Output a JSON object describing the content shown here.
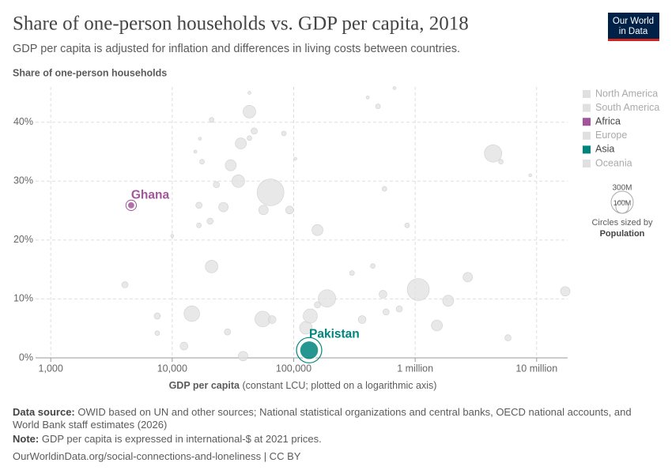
{
  "chart_data": {
    "type": "scatter",
    "title": "Share of one-person households vs. GDP per capita, 2018",
    "subtitle": "GDP per capita is adjusted for inflation and differences in living costs between countries.",
    "y_label": "Share of one-person households",
    "x_label": "GDP per capita",
    "x_label_note": "(constant LCU; plotted on a logarithmic axis)",
    "log_x": true,
    "grid": true,
    "legend": "right",
    "xlim": [
      750,
      18000000
    ],
    "xticks": [
      {
        "value": 1000,
        "label": "1,000"
      },
      {
        "value": 10000,
        "label": "10,000"
      },
      {
        "value": 100000,
        "label": "100,000"
      },
      {
        "value": 1000000,
        "label": "1 million"
      },
      {
        "value": 10000000,
        "label": "10 million"
      }
    ],
    "ylim": [
      0,
      46
    ],
    "yticks": [
      {
        "value": 0,
        "label": "0%"
      },
      {
        "value": 10,
        "label": "10%"
      },
      {
        "value": 20,
        "label": "20%"
      },
      {
        "value": 30,
        "label": "30%"
      },
      {
        "value": 40,
        "label": "40%"
      }
    ],
    "series": [
      {
        "name": "North America",
        "color": "#e0e0e0",
        "x": [
          4080,
          7530,
          7530,
          10000,
          12500,
          14500,
          15500,
          16900,
          17600,
          16600,
          16600,
          20500,
          21100,
          21100
        ],
        "values": [
          12.4,
          7.1,
          4.2,
          20.7,
          2.0,
          7.5,
          35.0,
          37.2,
          33.3,
          25.9,
          22.5,
          23.2,
          40.4,
          15.5
        ],
        "sizes": [
          24000000,
          24000000,
          14000000,
          6000000,
          38000000,
          150000000,
          6000000,
          6000000,
          14000000,
          24000000,
          14000000,
          24000000,
          14000000,
          98000000
        ]
      },
      {
        "name": "South America",
        "color": "#e0e0e0",
        "x": [
          23100,
          26400,
          30300,
          35000,
          36700,
          28500,
          38300,
          43200,
          43200,
          47300,
          43200,
          55600,
          56400,
          64500
        ],
        "values": [
          29.4,
          25.6,
          32.7,
          30.0,
          36.4,
          4.4,
          0.3,
          45.0,
          41.8,
          38.5,
          37.3,
          6.6,
          25.1,
          28.1
        ],
        "sizes": [
          24000000,
          55000000,
          75000000,
          98000000,
          75000000,
          24000000,
          55000000,
          6000000,
          98000000,
          24000000,
          14000000,
          150000000,
          55000000,
          440000000
        ]
      },
      {
        "name": "Africa",
        "color": "#a2559c",
        "labels": [
          "Ghana"
        ],
        "x": [
          4590
        ],
        "values": [
          25.9
        ],
        "sizes": [
          33000000
        ]
      },
      {
        "name": "Europe",
        "color": "#e0e0e0",
        "x": [
          66400,
          92500,
          103000,
          83000,
          126000,
          137000,
          157000,
          157000,
          188000,
          302000,
          366000,
          407000,
          494000,
          543000
        ],
        "values": [
          6.5,
          25.1,
          33.8,
          38.1,
          5.1,
          7.1,
          9.0,
          21.7,
          10.1,
          14.4,
          6.5,
          44.2,
          42.7,
          10.8
        ],
        "sizes": [
          38000000,
          38000000,
          6000000,
          14000000,
          98000000,
          124000000,
          24000000,
          75000000,
          185000000,
          14000000,
          38000000,
          6000000,
          14000000,
          38000000
        ]
      },
      {
        "name": "Asia",
        "color": "#00847e",
        "labels": [
          "Pakistan"
        ],
        "x": [
          134000
        ],
        "values": [
          1.3
        ],
        "sizes": [
          220000000
        ]
      },
      {
        "name": "Oceania",
        "color": "#e0e0e0",
        "x": [
          559000,
          576000,
          675000,
          740000,
          448000,
          859000,
          1060000,
          1510000,
          1870000,
          2710000,
          4380000,
          5080000,
          5810000,
          8870000,
          17200000
        ],
        "values": [
          28.7,
          7.8,
          45.8,
          8.3,
          15.6,
          22.5,
          11.6,
          5.5,
          9.7,
          13.7,
          34.7,
          33.3,
          3.4,
          31.0,
          11.3
        ],
        "sizes": [
          14000000,
          24000000,
          6000000,
          24000000,
          14000000,
          14000000,
          300000000,
          75000000,
          75000000,
          55000000,
          185000000,
          14000000,
          24000000,
          6000000,
          55000000
        ]
      }
    ],
    "size_legend": {
      "title": "Circles sized by",
      "variable": "Population",
      "values": [
        {
          "value": 300000000,
          "label": "300M"
        },
        {
          "value": 100000000,
          "label": "100M"
        }
      ]
    },
    "source_label": "Data source:",
    "source": "OWID based on UN and other sources; National statistical organizations and central banks, OECD national accounts, and World Bank staff estimates (2026)",
    "note_label": "Note:",
    "note": "GDP per capita is expressed in international-$ at 2021 prices.",
    "url": "OurWorldinData.org/social-connections-and-loneliness | CC BY",
    "logo": [
      "Our World",
      "in Data"
    ]
  }
}
